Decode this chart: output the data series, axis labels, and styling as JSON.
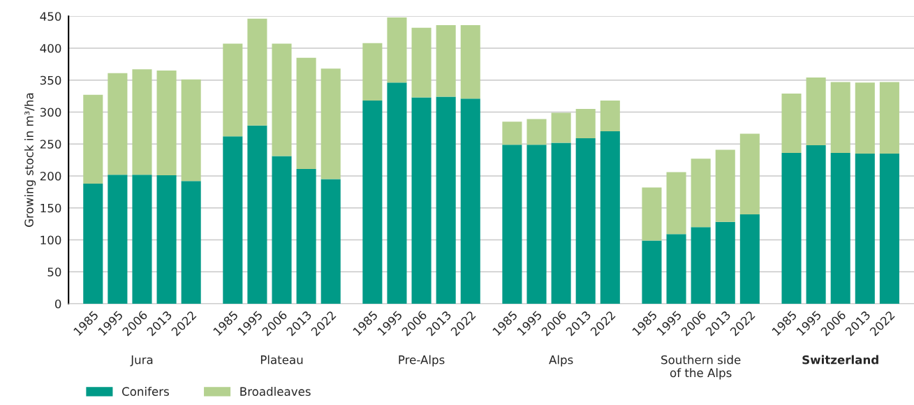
{
  "chart_data": {
    "type": "bar",
    "stacked": true,
    "ylabel": "Growing stock in m³/ha",
    "categories": [
      "1985",
      "1995",
      "2006",
      "2013",
      "2022",
      "1985",
      "1995",
      "2006",
      "2013",
      "2022",
      "1985",
      "1995",
      "2006",
      "2013",
      "2022",
      "1985",
      "1995",
      "2006",
      "2013",
      "2022",
      "1985",
      "1995",
      "2006",
      "2013",
      "2022",
      "1985",
      "1995",
      "2006",
      "2013",
      "2022"
    ],
    "series": [
      {
        "name": "Conifers",
        "color": "#009a87",
        "values": [
          188,
          202,
          202,
          201,
          192,
          262,
          279,
          231,
          211,
          195,
          318,
          346,
          323,
          324,
          321,
          249,
          249,
          252,
          259,
          270,
          99,
          109,
          120,
          128,
          140,
          236,
          248,
          236,
          235,
          235
        ]
      },
      {
        "name": "Broadleaves",
        "color": "#b4d18f",
        "values": [
          139,
          159,
          165,
          164,
          159,
          145,
          167,
          176,
          174,
          173,
          90,
          102,
          109,
          112,
          115,
          36,
          40,
          47,
          46,
          48,
          83,
          97,
          107,
          113,
          126,
          93,
          106,
          111,
          111,
          112
        ]
      }
    ],
    "annotations": [
      "Jura",
      "Plateau",
      "Pre-Alps",
      "Alps",
      "Southern side\nof the Alps",
      "Switzerland"
    ],
    "ylim": [
      0,
      450
    ],
    "yticks": [
      0,
      50,
      100,
      150,
      200,
      250,
      300,
      350,
      400,
      450
    ],
    "grid": "y",
    "legend": "bottom left"
  }
}
